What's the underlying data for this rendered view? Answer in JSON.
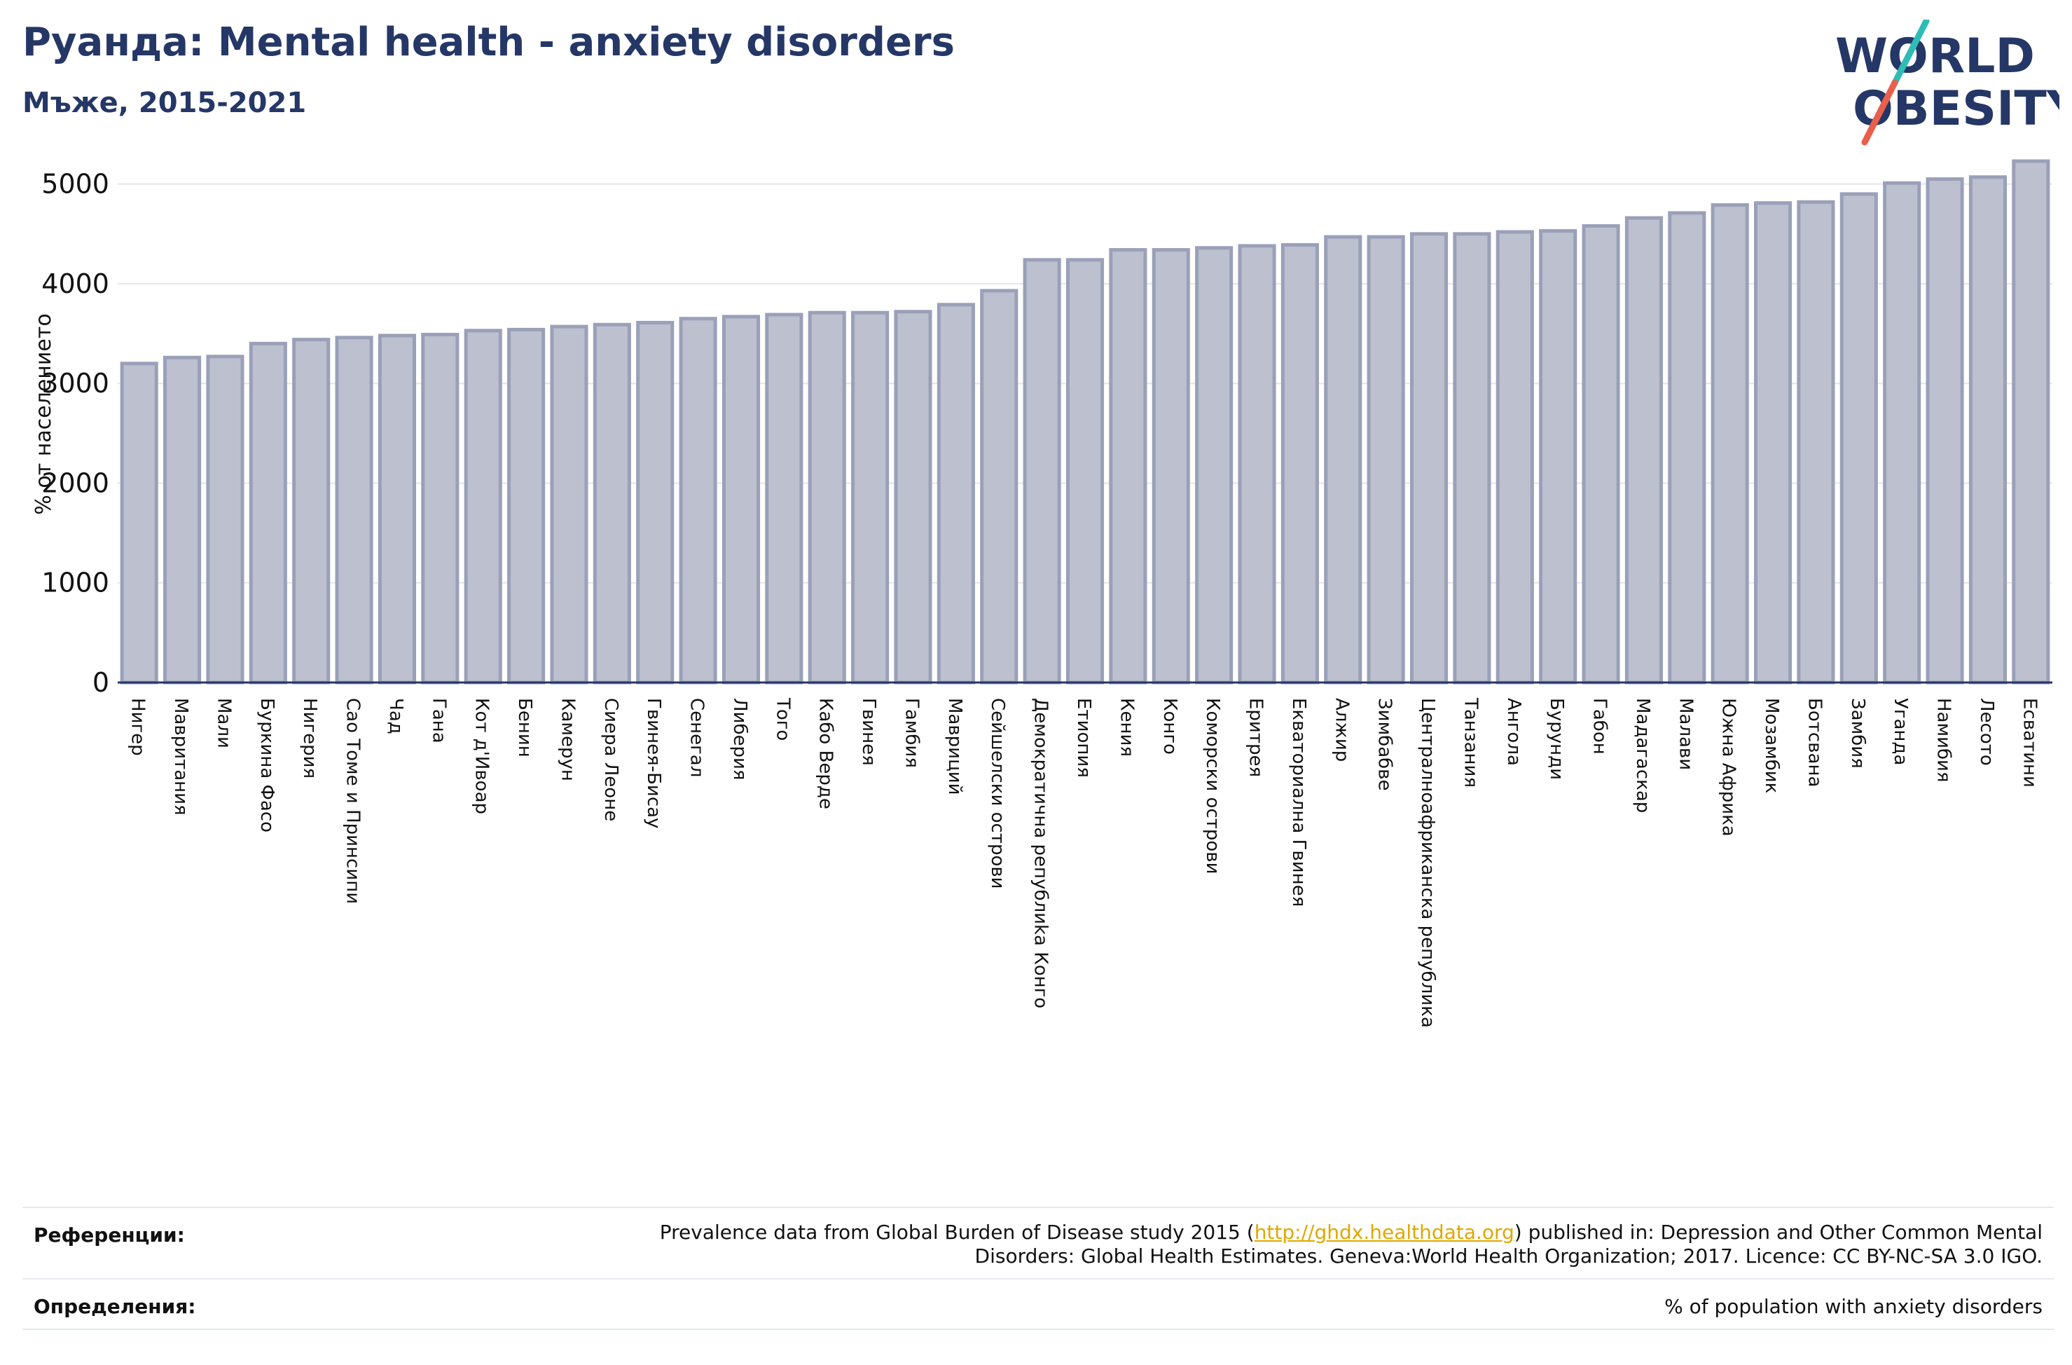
{
  "header": {
    "title": "Руанда: Mental health - anxiety disorders",
    "subtitle": "Мъже, 2015-2021"
  },
  "logo": {
    "line1": "WORLD",
    "line2": "OBESITY",
    "colors": {
      "text": "#253766",
      "slash_top": "#2ebdb5",
      "slash_bottom": "#e8604c"
    }
  },
  "chart_data": {
    "type": "bar",
    "title": "",
    "xlabel": "",
    "ylabel": "% от населението",
    "ylim": [
      0,
      5300
    ],
    "yticks": [
      0,
      1000,
      2000,
      3000,
      4000,
      5000
    ],
    "grid": true,
    "legend": "none",
    "bar_color": "#bcc0cf",
    "bar_border_color": "#9aa0b8",
    "categories": [
      "Нигер",
      "Мавритания",
      "Мали",
      "Буркина Фасо",
      "Нигерия",
      "Сао Томе и Принсипи",
      "Чад",
      "Гана",
      "Кот д'Ивоар",
      "Бенин",
      "Камерун",
      "Сиера Леоне",
      "Гвинея-Бисау",
      "Сенегал",
      "Либерия",
      "Того",
      "Кабо Верде",
      "Гвинея",
      "Гамбия",
      "Мавриций",
      "Сейшелски острови",
      "Демократична републиkа Конго",
      "Етиопия",
      "Кения",
      "Конго",
      "Коморски острови",
      "Еритрея",
      "Екваториална Гвинея",
      "Алжир",
      "Зимбабве",
      "Централноафриканска република",
      "Танзания",
      "Ангола",
      "Бурунди",
      "Габон",
      "Мадагаскар",
      "Малави",
      "Южна Африка",
      "Мозамбик",
      "Ботсвана",
      "Замбия",
      "Уганда",
      "Намибия",
      "Лесото",
      "Есватини"
    ],
    "values": [
      3200,
      3260,
      3270,
      3400,
      3440,
      3460,
      3480,
      3490,
      3530,
      3540,
      3570,
      3590,
      3610,
      3650,
      3670,
      3690,
      3710,
      3710,
      3720,
      3790,
      3930,
      4240,
      4240,
      4340,
      4340,
      4360,
      4380,
      4390,
      4470,
      4470,
      4500,
      4500,
      4520,
      4530,
      4580,
      4660,
      4710,
      4790,
      4810,
      4820,
      4900,
      5010,
      5050,
      5070,
      5230
    ]
  },
  "footer": {
    "references_label": "Референции:",
    "references_text_before": "Prevalence data from Global Burden of Disease study 2015 (",
    "references_link": "http://ghdx.healthdata.org",
    "references_text_after": ") published in: Depression and Other Common Mental",
    "references_text_line2": "Disorders: Global Health Estimates. Geneva:World Health Organization; 2017. Licence: CC BY-NC-SA 3.0 IGO.",
    "definitions_label": "Определения:",
    "definitions_text": "% of population with anxiety disorders"
  }
}
